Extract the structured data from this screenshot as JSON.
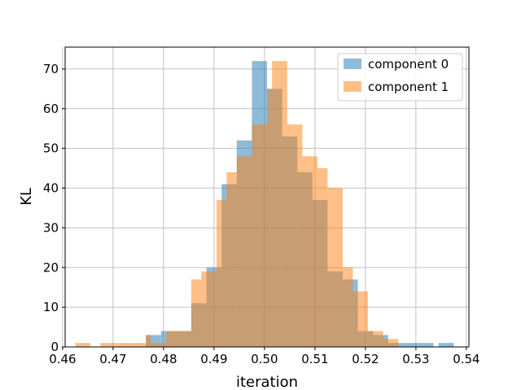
{
  "chart_data": {
    "type": "bar",
    "xlabel": "iteration",
    "ylabel": "KL",
    "xlim": [
      0.4605,
      0.5405
    ],
    "ylim": [
      0,
      75.5
    ],
    "grid": true,
    "legend_placement": "top-right",
    "x_ticks": [
      0.46,
      0.47,
      0.48,
      0.49,
      0.5,
      0.51,
      0.52,
      0.53,
      0.54
    ],
    "x_tick_labels": [
      "0.46",
      "0.47",
      "0.48",
      "0.49",
      "0.50",
      "0.51",
      "0.52",
      "0.53",
      "0.54"
    ],
    "y_ticks": [
      0,
      10,
      20,
      30,
      40,
      50,
      60,
      70
    ],
    "y_tick_labels": [
      "0",
      "10",
      "20",
      "30",
      "40",
      "50",
      "60",
      "70"
    ],
    "series": [
      {
        "name": "component 0",
        "color": "#1f77b4",
        "opacity": 0.5,
        "bins": [
          [
            0.4765,
            0.4795,
            3
          ],
          [
            0.4795,
            0.4825,
            4
          ],
          [
            0.4825,
            0.4855,
            4
          ],
          [
            0.4855,
            0.4885,
            11
          ],
          [
            0.4885,
            0.4915,
            20
          ],
          [
            0.4915,
            0.4945,
            41
          ],
          [
            0.4945,
            0.4975,
            52
          ],
          [
            0.4975,
            0.5005,
            72
          ],
          [
            0.5005,
            0.5035,
            65
          ],
          [
            0.5035,
            0.5065,
            53
          ],
          [
            0.5065,
            0.5095,
            44
          ],
          [
            0.5095,
            0.5125,
            37
          ],
          [
            0.5125,
            0.5155,
            19
          ],
          [
            0.5155,
            0.5185,
            17
          ],
          [
            0.5185,
            0.5215,
            4
          ],
          [
            0.5215,
            0.5245,
            3
          ],
          [
            0.5245,
            0.5275,
            1
          ],
          [
            0.5275,
            0.5305,
            1
          ],
          [
            0.5305,
            0.5335,
            1
          ],
          [
            0.5335,
            0.5365,
            0
          ],
          [
            0.5345,
            0.5375,
            1
          ]
        ]
      },
      {
        "name": "component 1",
        "color": "#ff7f0e",
        "opacity": 0.5,
        "bins": [
          [
            0.4625,
            0.4655,
            1
          ],
          [
            0.4655,
            0.4685,
            0
          ],
          [
            0.4675,
            0.4705,
            1
          ],
          [
            0.4705,
            0.4735,
            1
          ],
          [
            0.4735,
            0.4765,
            1
          ],
          [
            0.4765,
            0.4775,
            3
          ],
          [
            0.4775,
            0.4805,
            1
          ],
          [
            0.4805,
            0.4825,
            4
          ],
          [
            0.4825,
            0.4855,
            4
          ],
          [
            0.4855,
            0.4875,
            17
          ],
          [
            0.4875,
            0.4905,
            19
          ],
          [
            0.4905,
            0.4925,
            37
          ],
          [
            0.4925,
            0.4945,
            44
          ],
          [
            0.4945,
            0.4975,
            48
          ],
          [
            0.4975,
            0.5005,
            56
          ],
          [
            0.5005,
            0.5015,
            65
          ],
          [
            0.5015,
            0.5045,
            72
          ],
          [
            0.5045,
            0.5075,
            56
          ],
          [
            0.5075,
            0.5105,
            48
          ],
          [
            0.5105,
            0.5125,
            45
          ],
          [
            0.5125,
            0.5155,
            40
          ],
          [
            0.5155,
            0.5175,
            20
          ],
          [
            0.5175,
            0.5205,
            14
          ],
          [
            0.5205,
            0.5235,
            4
          ],
          [
            0.5235,
            0.5265,
            2
          ]
        ]
      }
    ]
  }
}
